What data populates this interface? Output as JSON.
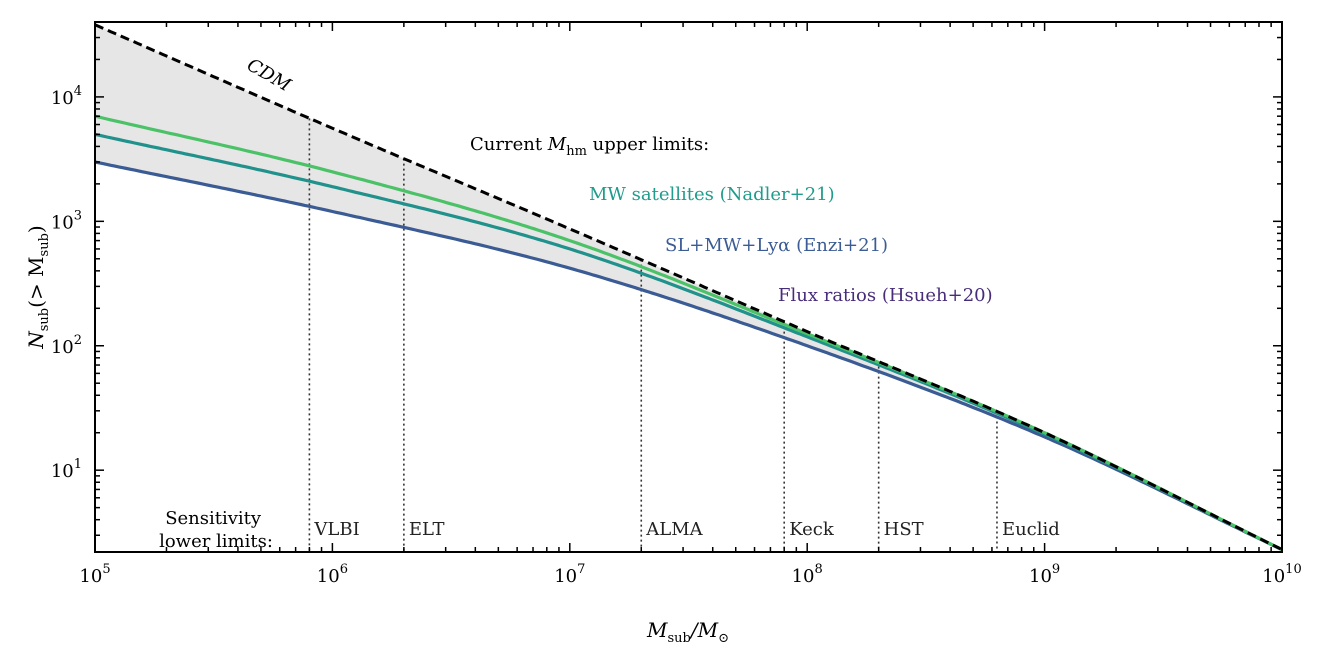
{
  "chart_data": {
    "type": "line",
    "xscale": "log",
    "yscale": "log",
    "xlim": [
      100000,
      10000000000
    ],
    "ylim": [
      2.2,
      40000
    ],
    "xlabel_parts": [
      "M",
      "sub",
      "/M",
      "⊙"
    ],
    "ylabel_parts": [
      "N",
      "sub",
      "(> M",
      "sub",
      ")"
    ],
    "x_ticks": [
      {
        "base": "10",
        "exp": "5",
        "value": 100000
      },
      {
        "base": "10",
        "exp": "6",
        "value": 1000000
      },
      {
        "base": "10",
        "exp": "7",
        "value": 10000000
      },
      {
        "base": "10",
        "exp": "8",
        "value": 100000000
      },
      {
        "base": "10",
        "exp": "9",
        "value": 1000000000
      },
      {
        "base": "10",
        "exp": "10",
        "value": 10000000000
      }
    ],
    "y_ticks": [
      {
        "base": "10",
        "exp": "1",
        "value": 10
      },
      {
        "base": "10",
        "exp": "2",
        "value": 100
      },
      {
        "base": "10",
        "exp": "3",
        "value": 1000
      },
      {
        "base": "10",
        "exp": "4",
        "value": 10000
      }
    ],
    "series": [
      {
        "name": "CDM",
        "color": "#000000",
        "dash": true,
        "x": [
          100000,
          1000000,
          10000000,
          100000000,
          1000000000,
          10000000000
        ],
        "y": [
          38000,
          5600,
          870,
          130,
          20,
          2.3
        ]
      },
      {
        "name": "MW satellites (Nadler+21)",
        "color": "#4bc267",
        "x": [
          100000,
          1000000,
          10000000,
          100000000,
          1000000000,
          10000000000
        ],
        "y": [
          7000,
          2500,
          700,
          125,
          20,
          2.3
        ]
      },
      {
        "name": "SL+MW+Lyα (Enzi+21)",
        "color": "#21918c",
        "x": [
          100000,
          1000000,
          10000000,
          100000000,
          1000000000,
          10000000000
        ],
        "y": [
          5000,
          1900,
          600,
          118,
          19.5,
          2.3
        ]
      },
      {
        "name": "Flux ratios (Hsueh+20)",
        "color": "#3b5b94",
        "x": [
          100000,
          1000000,
          10000000,
          100000000,
          1000000000,
          10000000000
        ],
        "y": [
          3000,
          1200,
          420,
          100,
          18.5,
          2.3
        ]
      }
    ],
    "shaded_region": {
      "between": [
        "CDM",
        "Flux ratios (Hsueh+20)"
      ],
      "color": "#e6e6e6"
    },
    "cdm_label": "CDM",
    "current_limits_label": {
      "prefix": "Current ",
      "M": "M",
      "sub": "hm",
      "suffix": " upper limits:"
    },
    "legend_labels": [
      {
        "text": "MW satellites (Nadler+21)",
        "color": "#1f9c8c"
      },
      {
        "text": "SL+MW+Lyα (Enzi+21)",
        "color": "#3b5b94"
      },
      {
        "text": "Flux ratios (Hsueh+20)",
        "color": "#472c7a"
      }
    ],
    "sensitivity_label": [
      "Sensitivity",
      "lower limits:"
    ],
    "instruments": [
      {
        "name": "VLBI",
        "x": 800000
      },
      {
        "name": "ELT",
        "x": 2000000
      },
      {
        "name": "ALMA",
        "x": 20000000
      },
      {
        "name": "Keck",
        "x": 80000000
      },
      {
        "name": "HST",
        "x": 200000000
      },
      {
        "name": "Euclid",
        "x": 630000000
      }
    ]
  }
}
